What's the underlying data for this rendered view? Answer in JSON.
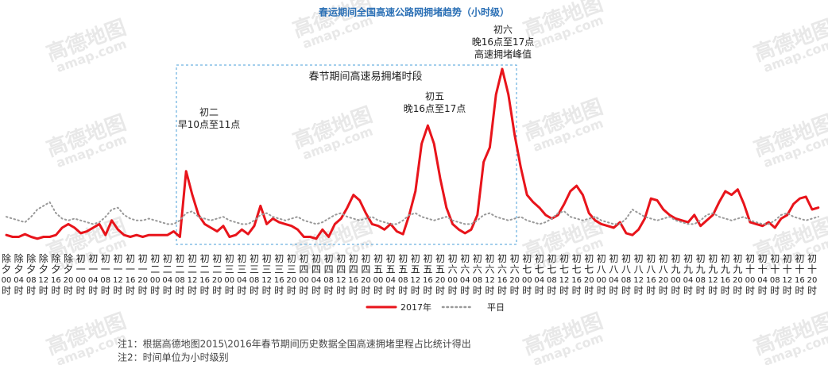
{
  "chart_data": {
    "type": "line",
    "title": "春运期间全国高速公路网拥堵趋势（小时级）",
    "box_label": "春节期间高速易拥堵时段",
    "annotations": [
      [
        "初二",
        "早10点至11点"
      ],
      [
        "初五",
        "晚16点至17点"
      ],
      [
        "初六",
        "晚16点至17点",
        "高速拥堵峰值"
      ]
    ],
    "notes": [
      "注1：根据高德地图2015\\2016年春节期间历史数据全国高速拥堵里程占比统计得出",
      "注2：时间单位为小时级别"
    ],
    "watermark": [
      "高德地图",
      "amap.com"
    ],
    "categories": [
      "除夕00时",
      null,
      "除夕04时",
      null,
      "除夕08时",
      null,
      "除夕12时",
      null,
      "除夕16时",
      null,
      "除夕20时",
      null,
      "初一00时",
      null,
      "初一04时",
      null,
      "初一08时",
      null,
      "初一12时",
      null,
      "初一16时",
      null,
      "初一20时",
      null,
      "初二00时",
      null,
      "初二04时",
      null,
      "初二08时",
      null,
      "初二12时",
      null,
      "初二16时",
      null,
      "初二20时",
      null,
      "初三00时",
      null,
      "初三04时",
      null,
      "初三08时",
      null,
      "初三12时",
      null,
      "初三16时",
      null,
      "初三20时",
      null,
      "初四00时",
      null,
      "初四04时",
      null,
      "初四08时",
      null,
      "初四12时",
      null,
      "初四16时",
      null,
      "初四20时",
      null,
      "初五00时",
      null,
      "初五04时",
      null,
      "初五08时",
      null,
      "初五12时",
      null,
      "初五16时",
      null,
      "初五20时",
      null,
      "初六00时",
      null,
      "初六04时",
      null,
      "初六08时",
      null,
      "初六12时",
      null,
      "初六16时",
      null,
      "初六20时",
      null,
      "初七00时",
      null,
      "初七04时",
      null,
      "初七08时",
      null,
      "初七12时",
      null,
      "初七16时",
      null,
      "初七20时",
      null,
      "初八00时",
      null,
      "初八04时",
      null,
      "初八08时",
      null,
      "初八12时",
      null,
      "初八16时",
      null,
      "初八20时",
      null,
      "初九00时",
      null,
      "初九04时",
      null,
      "初九08时",
      null,
      "初九12时",
      null,
      "初九16时",
      null,
      "初九20时",
      null,
      "初十00时",
      null,
      "初十04时",
      null,
      "初十08时",
      null,
      "初十12时",
      null,
      "初十16时",
      null,
      "初十20时",
      null
    ],
    "ylim": [
      0,
      100
    ],
    "legend": "bottom",
    "series": [
      {
        "name": "2017年",
        "color": "#e8141b",
        "style": "solid",
        "values": [
          6,
          5,
          5,
          6.5,
          5,
          4,
          5,
          5,
          6,
          10,
          12,
          10,
          7,
          8,
          10,
          12,
          6,
          14,
          9,
          6,
          5,
          6,
          5,
          6,
          6,
          6,
          6,
          8,
          5,
          41,
          28,
          17,
          12,
          10,
          8,
          11,
          5,
          6,
          9,
          6.5,
          11,
          22,
          12,
          15,
          13,
          12,
          11,
          9,
          5,
          5,
          4,
          9,
          5,
          12,
          15,
          21,
          28,
          25,
          18,
          12,
          11,
          9,
          12,
          8,
          6.5,
          17,
          30,
          56,
          66,
          56,
          37,
          21,
          12,
          9,
          7,
          9,
          17,
          46,
          54,
          83,
          97,
          83,
          61,
          43,
          28,
          24,
          21,
          17,
          15,
          17,
          23,
          30,
          33,
          28,
          18,
          14,
          12,
          11,
          10,
          13,
          7,
          6,
          9,
          15,
          26,
          25,
          20,
          17,
          15,
          14,
          13,
          17,
          11,
          14,
          17,
          24,
          30,
          28,
          31,
          23,
          13,
          12,
          11,
          13,
          10,
          15,
          17,
          23,
          26,
          27,
          20,
          21
        ]
      },
      {
        "name": "平日",
        "color": "#999999",
        "style": "dotted",
        "values": [
          16,
          15,
          14,
          13,
          16,
          20,
          22,
          24,
          18,
          15,
          14,
          15,
          14,
          13,
          12,
          13,
          16,
          20,
          21,
          17,
          15,
          14,
          14,
          15,
          14,
          13,
          12,
          12,
          14,
          18,
          19,
          16,
          15,
          14,
          15,
          16,
          14,
          13,
          12,
          12,
          14,
          17,
          18,
          16,
          15,
          14,
          15,
          16,
          14,
          13,
          12,
          13,
          15,
          17,
          18,
          16,
          15,
          14,
          15,
          16,
          14,
          13,
          12,
          12,
          14,
          17,
          18,
          16,
          15,
          14,
          15,
          16,
          14,
          13,
          12,
          12,
          14,
          17,
          18,
          16,
          15,
          14,
          15,
          16,
          14,
          13,
          12,
          13,
          15,
          18,
          19,
          16,
          15,
          14,
          15,
          16,
          14,
          13,
          12,
          12,
          15,
          20,
          18,
          16,
          15,
          14,
          15,
          16,
          14,
          13,
          12,
          12,
          14,
          17,
          18,
          16,
          15,
          14,
          15,
          16,
          14,
          13,
          12,
          12,
          14,
          17,
          18,
          16,
          15,
          14,
          15,
          16
        ]
      }
    ]
  }
}
